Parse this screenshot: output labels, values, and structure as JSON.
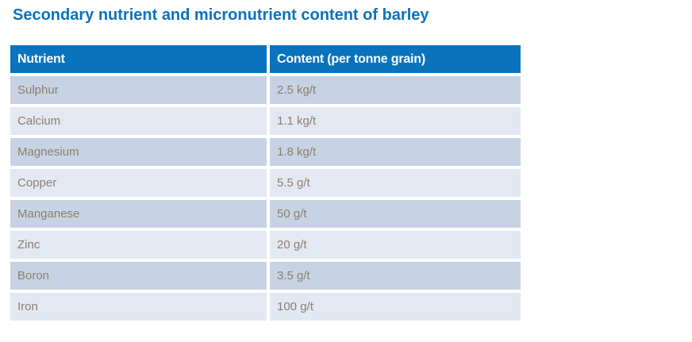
{
  "title": "Secondary nutrient and micronutrient content of barley",
  "colors": {
    "accent_blue": "#0a73be",
    "title_blue": "#0b72bd",
    "row_dark": "#c7d3e4",
    "row_light": "#e3e8f2",
    "body_text": "#8c7f6f",
    "header_text": "#ffffff"
  },
  "table": {
    "header": {
      "nutrient_label": "Nutrient",
      "content_label": "Content (per tonne grain)"
    },
    "rows": [
      {
        "nutrient": "Sulphur",
        "content": "2.5 kg/t"
      },
      {
        "nutrient": "Calcium",
        "content": "1.1 kg/t"
      },
      {
        "nutrient": "Magnesium",
        "content": "1.8 kg/t"
      },
      {
        "nutrient": "Copper",
        "content": "5.5 g/t"
      },
      {
        "nutrient": "Manganese",
        "content": "50 g/t"
      },
      {
        "nutrient": "Zinc",
        "content": "20 g/t"
      },
      {
        "nutrient": "Boron",
        "content": "3.5 g/t"
      },
      {
        "nutrient": "Iron",
        "content": "100 g/t"
      }
    ]
  }
}
